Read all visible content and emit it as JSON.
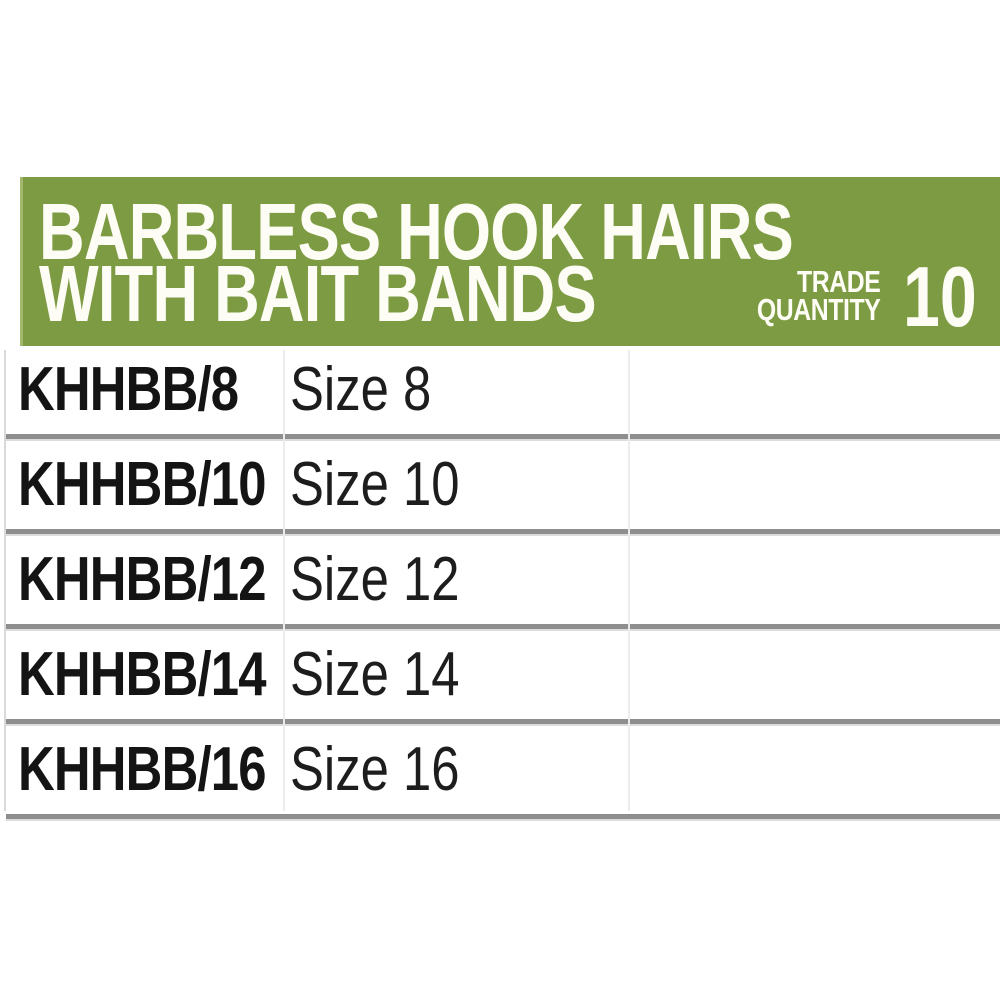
{
  "header": {
    "title_line1": "BARBLESS HOOK HAIRS",
    "title_line2": "WITH BAIT BANDS",
    "trade_line1": "TRADE",
    "trade_line2": "QUANTITY",
    "quantity": "10",
    "band_color": "#7d9b42",
    "text_color": "#ffffff"
  },
  "table": {
    "separator_color": "#8e8e8e",
    "code_color": "#141414",
    "rows": [
      {
        "code": "KHHBB/8",
        "size": "Size 8"
      },
      {
        "code": "KHHBB/10",
        "size": "Size 10"
      },
      {
        "code": "KHHBB/12",
        "size": "Size 12"
      },
      {
        "code": "KHHBB/14",
        "size": "Size 14"
      },
      {
        "code": "KHHBB/16",
        "size": "Size 16"
      }
    ]
  }
}
